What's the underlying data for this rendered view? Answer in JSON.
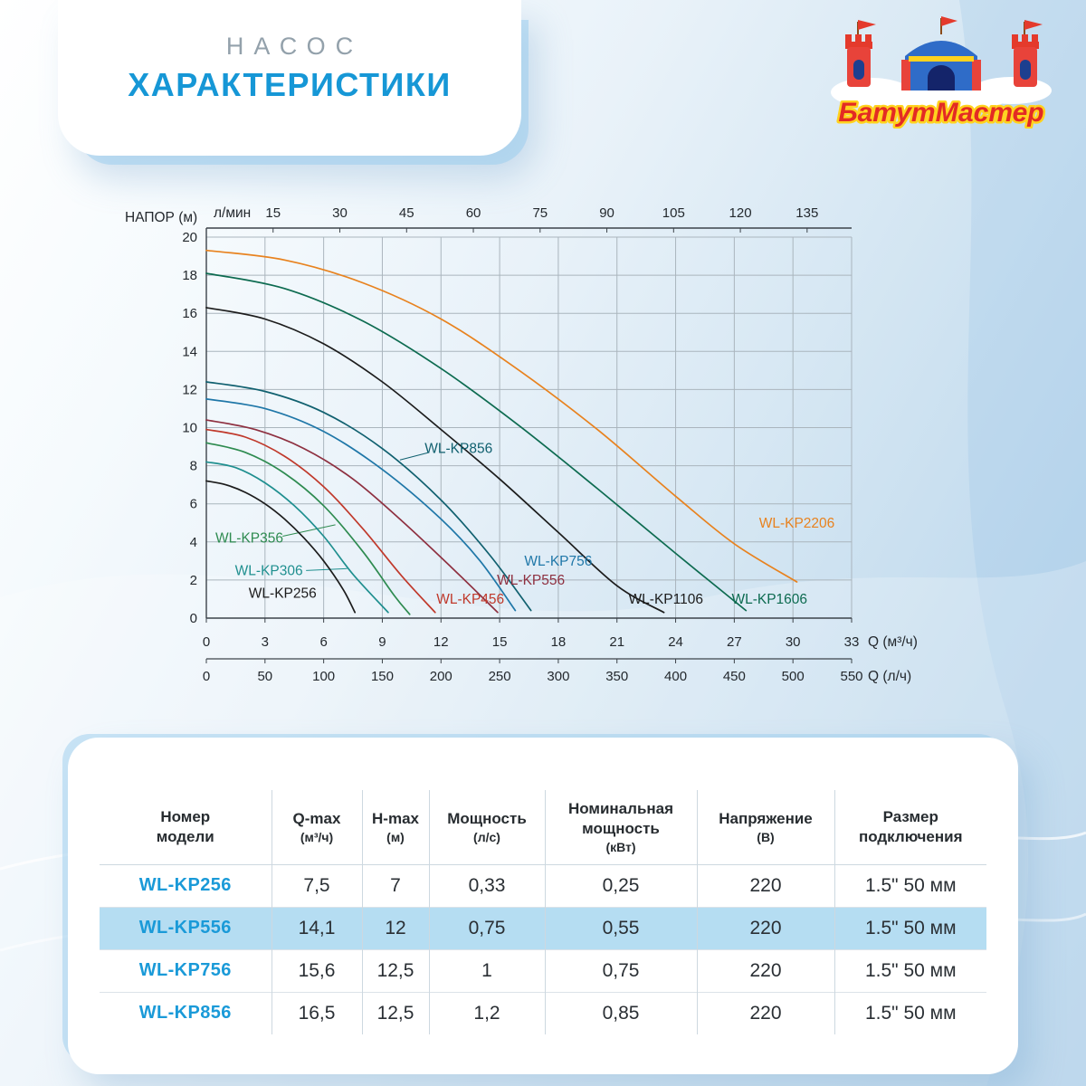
{
  "header": {
    "subtitle": "НАСОС",
    "title": "ХАРАКТЕРИСТИКИ"
  },
  "logo": {
    "text": "БатутМастер"
  },
  "chart_data": {
    "type": "line",
    "title": "",
    "ylabel": "НАПОР (м)",
    "top_axis_label": "л/мин",
    "x_axis_label_m3h": "Q (м³/ч)",
    "x_axis_label_lh": "Q (л/ч)",
    "ylim": [
      0,
      20
    ],
    "xlim": [
      0,
      33
    ],
    "grid": true,
    "legend_position": "inline-labels",
    "y_ticks": [
      0,
      2,
      4,
      6,
      8,
      10,
      12,
      14,
      16,
      18,
      20
    ],
    "x_ticks_m3h": [
      0,
      3,
      6,
      9,
      12,
      15,
      18,
      21,
      24,
      27,
      30,
      33
    ],
    "x_ticks_lh": [
      0,
      50,
      100,
      150,
      200,
      250,
      300,
      350,
      400,
      450,
      500,
      550
    ],
    "top_ticks_lpm": [
      15,
      30,
      45,
      60,
      75,
      90,
      105,
      120,
      135
    ],
    "top_axis_max": 145,
    "series": [
      {
        "name": "WL-KP2206",
        "color": "#e8821e",
        "points": [
          [
            0,
            19.3
          ],
          [
            4,
            18.8
          ],
          [
            8,
            17.6
          ],
          [
            12,
            15.7
          ],
          [
            16,
            13.0
          ],
          [
            20,
            9.9
          ],
          [
            24,
            6.4
          ],
          [
            27,
            3.9
          ],
          [
            30.2,
            1.9
          ]
        ],
        "label": {
          "x": 30.2,
          "y": 5.0
        }
      },
      {
        "name": "WL-KP1606",
        "color": "#0d6b50",
        "points": [
          [
            0,
            18.1
          ],
          [
            4,
            17.3
          ],
          [
            8,
            15.6
          ],
          [
            12,
            13.1
          ],
          [
            16,
            10.1
          ],
          [
            20,
            6.8
          ],
          [
            24,
            3.4
          ],
          [
            27.6,
            0.4
          ]
        ],
        "label": {
          "x": 28.8,
          "y": 1.0
        }
      },
      {
        "name": "WL-KP1106",
        "color": "#1c1c1c",
        "points": [
          [
            0,
            16.3
          ],
          [
            3,
            15.7
          ],
          [
            6,
            14.4
          ],
          [
            9,
            12.4
          ],
          [
            12,
            9.9
          ],
          [
            15,
            7.3
          ],
          [
            18,
            4.5
          ],
          [
            21,
            1.7
          ],
          [
            23.4,
            0.3
          ]
        ],
        "label": {
          "x": 23.5,
          "y": 1.0
        }
      },
      {
        "name": "WL-KP856",
        "color": "#10606f",
        "points": [
          [
            0,
            12.4
          ],
          [
            3,
            11.9
          ],
          [
            6,
            10.8
          ],
          [
            9,
            8.9
          ],
          [
            12,
            6.2
          ],
          [
            14.5,
            3.3
          ],
          [
            16.6,
            0.4
          ]
        ],
        "label": {
          "x": 12.9,
          "y": 8.9
        },
        "leader": [
          [
            11.4,
            8.7
          ],
          [
            9.9,
            8.3
          ]
        ]
      },
      {
        "name": "WL-KP756",
        "color": "#1f77a8",
        "points": [
          [
            0,
            11.5
          ],
          [
            3,
            11.0
          ],
          [
            6,
            9.8
          ],
          [
            9,
            7.8
          ],
          [
            12,
            5.2
          ],
          [
            14,
            3.0
          ],
          [
            15.8,
            0.4
          ]
        ],
        "label": {
          "x": 18.0,
          "y": 3.0
        }
      },
      {
        "name": "WL-KP556",
        "color": "#8e3040",
        "points": [
          [
            0,
            10.4
          ],
          [
            2.5,
            9.9
          ],
          [
            5,
            8.9
          ],
          [
            7.5,
            7.3
          ],
          [
            10,
            5.1
          ],
          [
            12.5,
            2.7
          ],
          [
            14.9,
            0.3
          ]
        ],
        "label": {
          "x": 16.6,
          "y": 2.0
        }
      },
      {
        "name": "WL-KP456",
        "color": "#c0392b",
        "points": [
          [
            0,
            9.9
          ],
          [
            2,
            9.5
          ],
          [
            4,
            8.5
          ],
          [
            6,
            6.9
          ],
          [
            8,
            4.7
          ],
          [
            10,
            2.2
          ],
          [
            11.7,
            0.3
          ]
        ],
        "label": {
          "x": 13.5,
          "y": 1.0
        }
      },
      {
        "name": "WL-KP356",
        "color": "#2e8b50",
        "points": [
          [
            0,
            9.2
          ],
          [
            2,
            8.7
          ],
          [
            4,
            7.6
          ],
          [
            6,
            5.9
          ],
          [
            8,
            3.5
          ],
          [
            9.6,
            1.2
          ],
          [
            10.4,
            0.2
          ]
        ],
        "label": {
          "x": 2.2,
          "y": 4.2
        },
        "leader": [
          [
            3.9,
            4.3
          ],
          [
            6.6,
            4.9
          ]
        ]
      },
      {
        "name": "WL-KP306",
        "color": "#1f8f8f",
        "points": [
          [
            0,
            8.2
          ],
          [
            1.5,
            7.9
          ],
          [
            3,
            7.1
          ],
          [
            4.5,
            5.9
          ],
          [
            6,
            4.3
          ],
          [
            7.5,
            2.3
          ],
          [
            9.3,
            0.3
          ]
        ],
        "label": {
          "x": 3.2,
          "y": 2.5
        },
        "leader": [
          [
            5.1,
            2.5
          ],
          [
            7.2,
            2.6
          ]
        ]
      },
      {
        "name": "WL-KP256",
        "color": "#1c1c1c",
        "points": [
          [
            0,
            7.2
          ],
          [
            1,
            7.0
          ],
          [
            2,
            6.6
          ],
          [
            3,
            6.0
          ],
          [
            4,
            5.2
          ],
          [
            5,
            4.2
          ],
          [
            6,
            3.0
          ],
          [
            7,
            1.5
          ],
          [
            7.6,
            0.3
          ]
        ],
        "label": {
          "x": 3.9,
          "y": 1.3
        }
      }
    ]
  },
  "table": {
    "headers": [
      {
        "lines": [
          "Номер",
          "модели"
        ]
      },
      {
        "lines": [
          "Q-max",
          "(м³/ч)"
        ]
      },
      {
        "lines": [
          "H-max",
          "(м)"
        ]
      },
      {
        "lines": [
          "Мощность",
          "(л/с)"
        ]
      },
      {
        "lines": [
          "Номинальная",
          "мощность",
          "(кВт)"
        ]
      },
      {
        "lines": [
          "Напряжение",
          "(В)"
        ]
      },
      {
        "lines": [
          "Размер",
          "подключения"
        ]
      }
    ],
    "rows": [
      {
        "model": "WL-KP256",
        "qmax": "7,5",
        "hmax": "7",
        "power": "0,33",
        "nominal": "0,25",
        "voltage": "220",
        "size": "1.5\" 50 мм",
        "highlight": false
      },
      {
        "model": "WL-KP556",
        "qmax": "14,1",
        "hmax": "12",
        "power": "0,75",
        "nominal": "0,55",
        "voltage": "220",
        "size": "1.5\" 50 мм",
        "highlight": true
      },
      {
        "model": "WL-KP756",
        "qmax": "15,6",
        "hmax": "12,5",
        "power": "1",
        "nominal": "0,75",
        "voltage": "220",
        "size": "1.5\" 50 мм",
        "highlight": false
      },
      {
        "model": "WL-KP856",
        "qmax": "16,5",
        "hmax": "12,5",
        "power": "1,2",
        "nominal": "0,85",
        "voltage": "220",
        "size": "1.5\" 50 мм",
        "highlight": false
      }
    ]
  }
}
